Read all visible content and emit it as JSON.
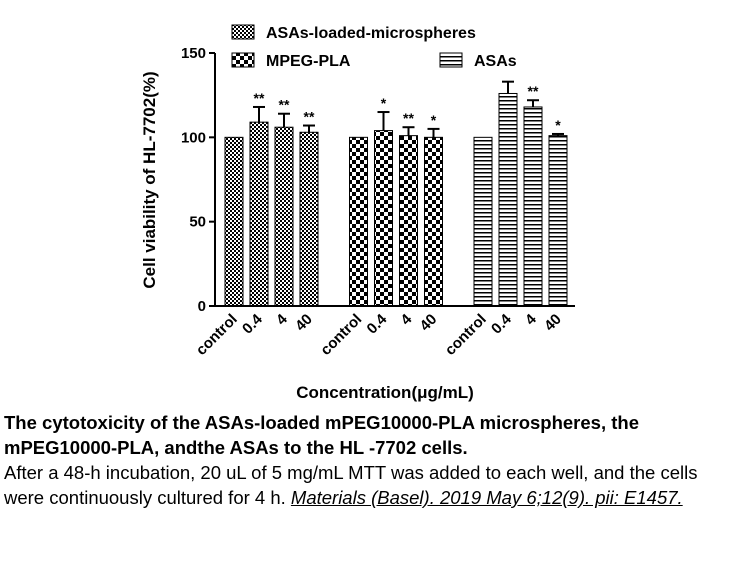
{
  "chart_data": {
    "type": "grouped-bar",
    "y_label": "Cell viability of HL-7702(%)",
    "x_label": "Concentration(μg/mL)",
    "categories": [
      "control",
      "0.4",
      "4",
      "40"
    ],
    "ylim": [
      0,
      150
    ],
    "yticks": [
      0,
      50,
      100,
      150
    ],
    "series": [
      {
        "name": "ASAs-loaded-microspheres",
        "pattern": "checker-small",
        "values": [
          100,
          109,
          106,
          103
        ],
        "errors": [
          0,
          9,
          8,
          4
        ],
        "annotations": [
          null,
          "**",
          "**",
          "**"
        ]
      },
      {
        "name": "MPEG-PLA",
        "pattern": "checker-large",
        "values": [
          100,
          104,
          101,
          100
        ],
        "errors": [
          0,
          11,
          5,
          5
        ],
        "annotations": [
          null,
          "*",
          "**",
          "*"
        ]
      },
      {
        "name": "ASAs",
        "pattern": "stripes",
        "values": [
          100,
          126,
          118,
          101
        ],
        "errors": [
          0,
          7,
          4,
          1
        ],
        "annotations": [
          null,
          null,
          "**",
          "*"
        ]
      }
    ]
  },
  "caption": {
    "title": "The cytotoxicity of the ASAs-loaded mPEG10000-PLA microspheres, the mPEG10000-PLA, andthe ASAs to the HL -7702 cells.",
    "body": "After a 48-h incubation, 20 uL of 5 mg/mL MTT was added to each well, and the cells were continuously cultured for 4 h.",
    "citation": "Materials (Basel). 2019 May 6;12(9). pii: E1457."
  }
}
